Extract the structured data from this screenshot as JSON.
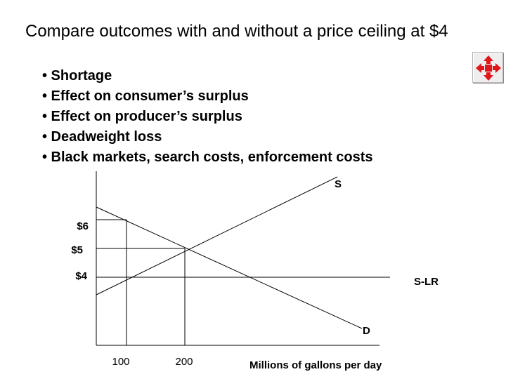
{
  "slide": {
    "title": "Compare outcomes with and without a price ceiling at $4",
    "bullets": [
      "• Shortage",
      "• Effect on consumer’s surplus",
      "• Effect on producer’s surplus",
      "• Deadweight loss",
      "• Black markets, search costs, enforcement costs"
    ]
  },
  "nav_button": {
    "icon": "move-arrows-icon",
    "color": "#e0161b"
  },
  "chart_data": {
    "type": "line",
    "title": "",
    "xlabel": "Millions of gallons per day",
    "ylabel": "",
    "x_ticks": [
      "100",
      "200"
    ],
    "y_ticks": [
      "$6",
      "$5",
      "$4"
    ],
    "curve_labels": {
      "supply": "S",
      "demand": "D",
      "ceiling": "S-LR"
    },
    "supply_curve": {
      "name": "S",
      "points": [
        [
          100,
          4
        ],
        [
          200,
          5
        ]
      ]
    },
    "demand_curve": {
      "name": "D",
      "points": [
        [
          100,
          6
        ],
        [
          200,
          5
        ]
      ]
    },
    "price_ceiling": 4,
    "equilibrium": {
      "quantity": 200,
      "price": 5
    }
  }
}
